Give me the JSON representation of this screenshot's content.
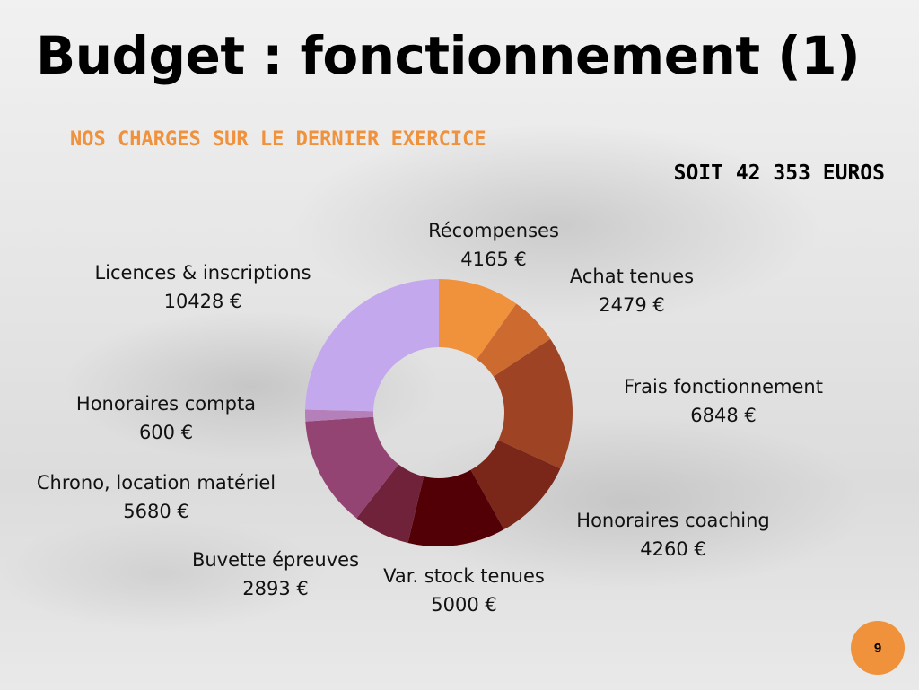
{
  "slide": {
    "title": "Budget : fonctionnement (1)",
    "subtitle": "NOS CHARGES SUR LE DERNIER EXERCICE",
    "total": "SOIT 42 353 EUROS",
    "page_number": "9"
  },
  "chart_data": {
    "type": "pie",
    "donut": true,
    "title": "",
    "unit": "€",
    "slices": [
      {
        "name": "Récompenses",
        "value": 4165,
        "label": "4165 €",
        "color": "#f0913c"
      },
      {
        "name": "Achat tenues",
        "value": 2479,
        "label": "2479 €",
        "color": "#cd6a30"
      },
      {
        "name": "Frais fonctionnement",
        "value": 6848,
        "label": "6848 €",
        "color": "#9e4424"
      },
      {
        "name": "Honoraires coaching",
        "value": 4260,
        "label": "4260 €",
        "color": "#7a2618"
      },
      {
        "name": "Var. stock tenues",
        "value": 5000,
        "label": "5000 €",
        "color": "#520006"
      },
      {
        "name": "Buvette épreuves",
        "value": 2893,
        "label": "2893 €",
        "color": "#70223a"
      },
      {
        "name": "Chrono, location matériel",
        "value": 5680,
        "label": "5680 €",
        "color": "#944473"
      },
      {
        "name": "Honoraires compta",
        "value": 600,
        "label": "600 €",
        "color": "#b580ba"
      },
      {
        "name": "Licences & inscriptions",
        "value": 10428,
        "label": "10428 €",
        "color": "#c4a8ee"
      }
    ]
  }
}
